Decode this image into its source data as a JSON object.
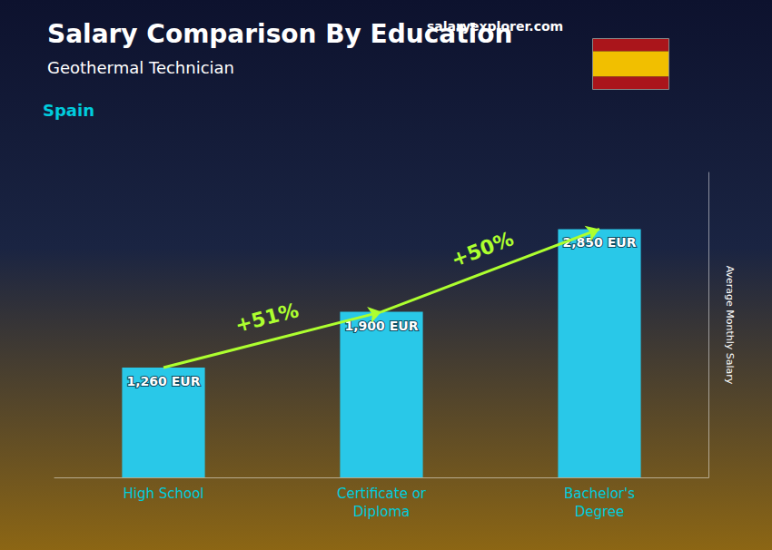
{
  "chart_data": {
    "type": "bar",
    "title": "Salary Comparison By Education",
    "subtitle": "Geothermal Technician",
    "ylabel": "Average Monthly Salary",
    "annotations": [
      "Spain",
      "salaryexplorer.com",
      "+51%",
      "+50%"
    ],
    "categories": [
      "High School",
      "Certificate or\nDiploma",
      "Bachelor's\nDegree"
    ],
    "values": [
      1260,
      1900,
      2850
    ],
    "value_labels": [
      "1,260 EUR",
      "1,900 EUR",
      "2,850 EUR"
    ],
    "data_labels": true,
    "color": "#29C8E8",
    "ylim": [
      0,
      3500
    ],
    "grid": false,
    "tick_labels": "x"
  }
}
